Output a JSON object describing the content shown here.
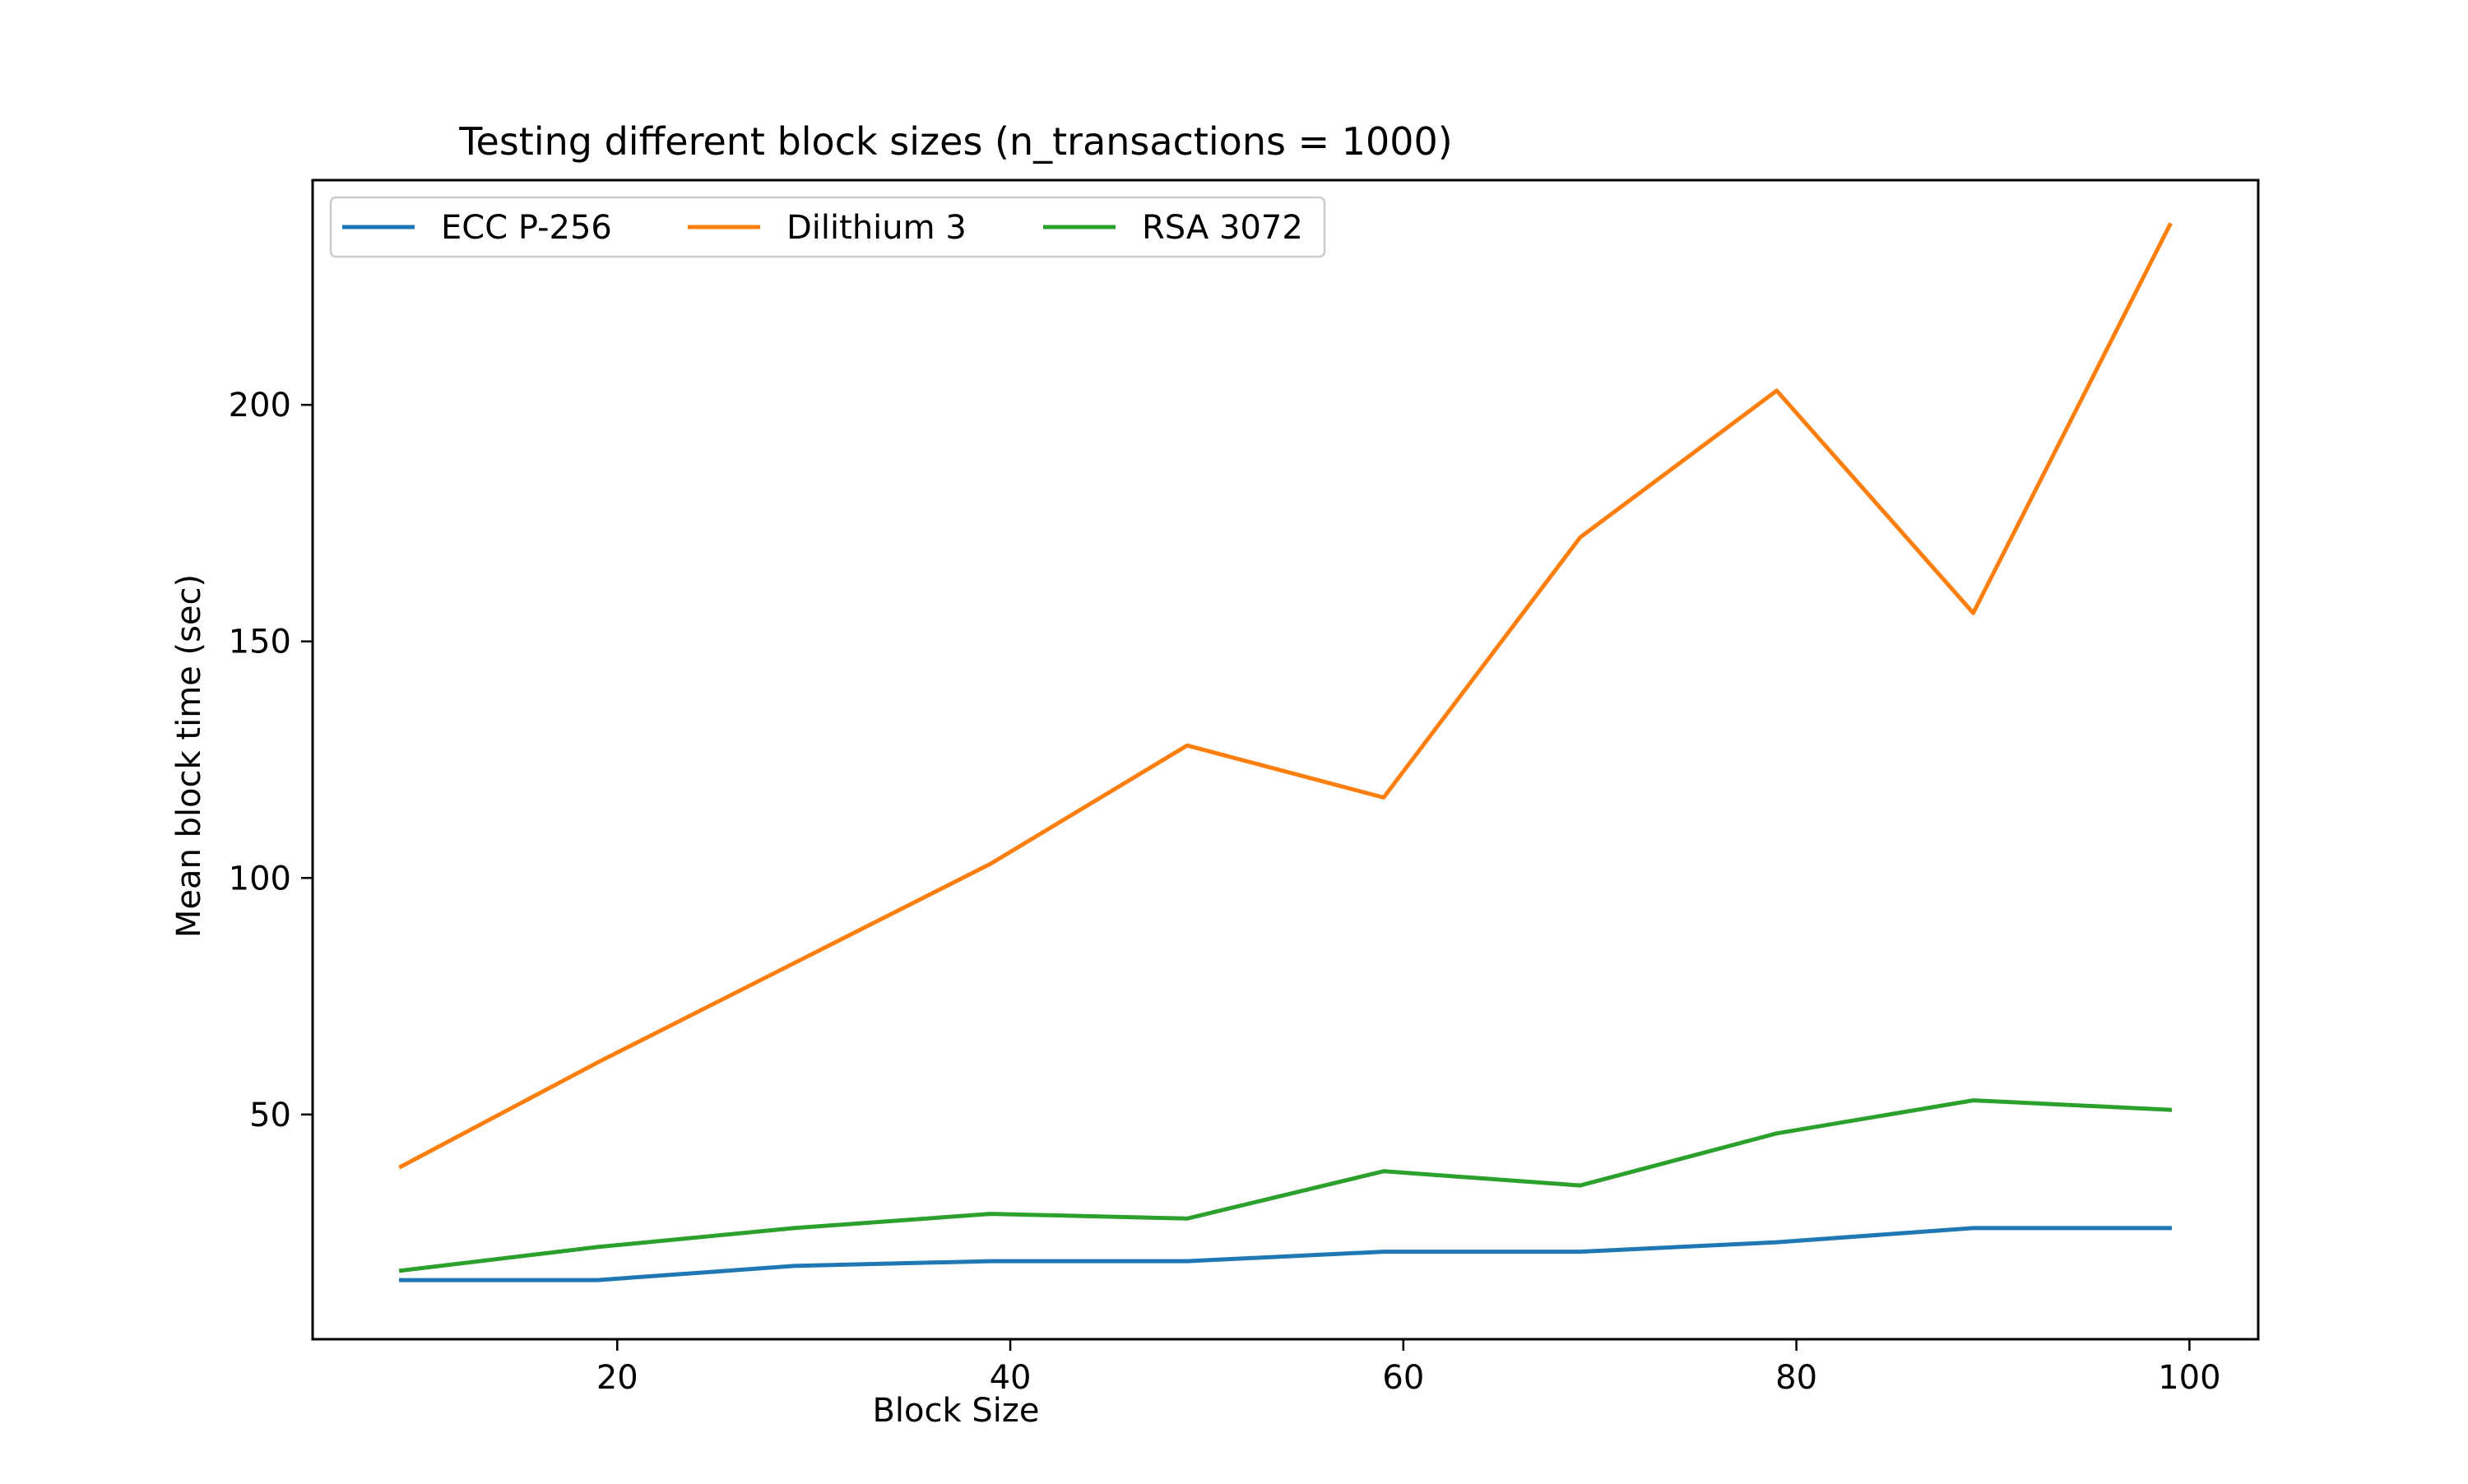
{
  "chart_data": {
    "type": "line",
    "title": "Testing different block sizes (n_transactions = 1000)",
    "xlabel": "Block Size",
    "ylabel": "Mean block time (sec)",
    "x": [
      9,
      19,
      29,
      39,
      49,
      59,
      69,
      79,
      89,
      99
    ],
    "xlim": [
      4.5,
      103.5
    ],
    "ylim": [
      2.5,
      247.5
    ],
    "xticks": [
      20,
      40,
      60,
      80,
      100
    ],
    "yticks": [
      50,
      100,
      150,
      200
    ],
    "grid": false,
    "legend_position": "top-left",
    "series": [
      {
        "name": "ECC P-256",
        "color": "#1f77b4",
        "values": [
          15,
          15,
          18,
          19,
          19,
          21,
          21,
          23,
          26,
          26
        ]
      },
      {
        "name": "Dilithium 3",
        "color": "#ff7f0e",
        "values": [
          39,
          61,
          82,
          103,
          128,
          117,
          172,
          203,
          156,
          238
        ]
      },
      {
        "name": "RSA 3072",
        "color": "#2ca02c",
        "values": [
          17,
          22,
          26,
          29,
          28,
          38,
          35,
          46,
          53,
          51
        ]
      }
    ]
  }
}
